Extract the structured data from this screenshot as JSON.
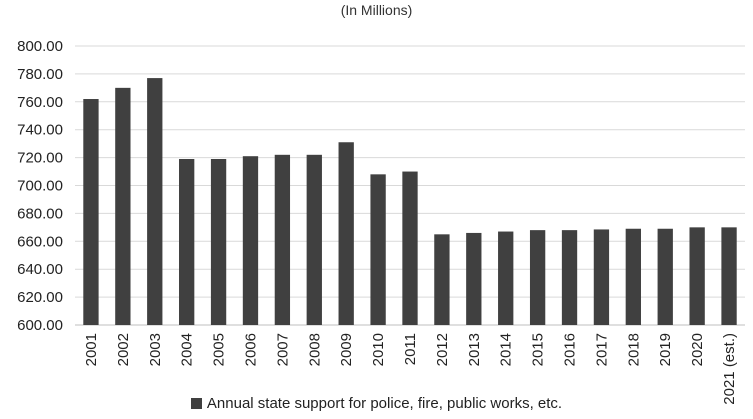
{
  "chart_data": {
    "type": "bar",
    "subtitle": "(In Millions)",
    "categories": [
      "2001",
      "2002",
      "2003",
      "2004",
      "2005",
      "2006",
      "2007",
      "2008",
      "2009",
      "2010",
      "2011",
      "2012",
      "2013",
      "2014",
      "2015",
      "2016",
      "2017",
      "2018",
      "2019",
      "2020",
      "2021 (est.)"
    ],
    "series": [
      {
        "name": "Annual state support for police, fire, public works, etc.",
        "values": [
          762,
          770,
          777,
          719,
          719,
          721,
          722,
          722,
          731,
          708,
          710,
          665,
          666,
          667,
          668,
          668,
          668.5,
          669,
          669,
          670,
          670
        ]
      }
    ],
    "ylim": [
      600,
      800
    ],
    "yticks": [
      "600.00",
      "620.00",
      "640.00",
      "660.00",
      "680.00",
      "700.00",
      "720.00",
      "740.00",
      "760.00",
      "780.00",
      "800.00"
    ],
    "grid": true,
    "legend_position": "bottom",
    "colors": {
      "bar": "#404040",
      "grid": "#d9d9d9",
      "axis": "#bfbfbf"
    }
  }
}
